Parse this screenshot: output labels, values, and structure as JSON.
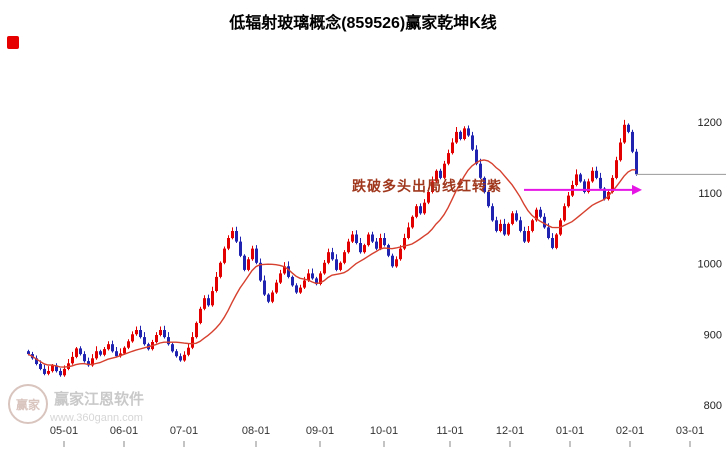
{
  "title": "低辐射玻璃概念(859526)赢家乾坤K线",
  "annotation": {
    "text": "跌破多头出局线红转紫",
    "color": "#a0381e"
  },
  "watermark": {
    "logo_text": "赢家",
    "brand": "赢家江恩软件",
    "url": "www.360gann.com",
    "color": "#c9c9c9"
  },
  "chart_data": {
    "type": "candlestick",
    "title": "低辐射玻璃概念(859526)赢家乾坤K线",
    "ylim": [
      800,
      1200
    ],
    "y_ticks": [
      800,
      900,
      1000,
      1100,
      1200
    ],
    "x_ticks": [
      {
        "label": "05-01",
        "index": 9
      },
      {
        "label": "06-01",
        "index": 24
      },
      {
        "label": "07-01",
        "index": 39
      },
      {
        "label": "08-01",
        "index": 57
      },
      {
        "label": "09-01",
        "index": 73
      },
      {
        "label": "10-01",
        "index": 89
      },
      {
        "label": "11-01",
        "index": 105.5
      },
      {
        "label": "12-01",
        "index": 120.5
      },
      {
        "label": "01-01",
        "index": 135.5
      },
      {
        "label": "02-01",
        "index": 150.5
      },
      {
        "label": "03-01",
        "index": 165.5
      }
    ],
    "closes": [
      872,
      866,
      858,
      851,
      844,
      848,
      856,
      848,
      842,
      851,
      859,
      868,
      880,
      872,
      862,
      856,
      866,
      876,
      871,
      879,
      886,
      876,
      869,
      873,
      881,
      890,
      900,
      906,
      896,
      886,
      879,
      889,
      899,
      906,
      896,
      886,
      876,
      869,
      863,
      871,
      881,
      896,
      916,
      936,
      951,
      941,
      961,
      981,
      1001,
      1021,
      1036,
      1046,
      1031,
      1011,
      991,
      1006,
      1021,
      1001,
      976,
      956,
      946,
      959,
      973,
      986,
      996,
      981,
      969,
      959,
      966,
      976,
      986,
      979,
      971,
      986,
      1001,
      1016,
      1006,
      991,
      1001,
      1016,
      1031,
      1041,
      1029,
      1016,
      1026,
      1041,
      1031,
      1021,
      1036,
      1026,
      1011,
      996,
      1006,
      1021,
      1036,
      1051,
      1066,
      1081,
      1071,
      1086,
      1101,
      1116,
      1131,
      1121,
      1141,
      1156,
      1171,
      1186,
      1176,
      1191,
      1181,
      1161,
      1141,
      1121,
      1101,
      1081,
      1061,
      1046,
      1056,
      1041,
      1056,
      1071,
      1061,
      1046,
      1031,
      1046,
      1061,
      1076,
      1066,
      1051,
      1036,
      1022,
      1041,
      1061,
      1081,
      1096,
      1111,
      1126,
      1116,
      1101,
      1116,
      1131,
      1121,
      1106,
      1091,
      1101,
      1121,
      1146,
      1171,
      1196,
      1186,
      1158,
      1126
    ],
    "ma_window": 15,
    "up_color": "#e30000",
    "down_color": "#1f23b0",
    "ma_color": "#d6402e",
    "exit_line": {
      "label": "跌破多头出局线红转紫",
      "price": 1104,
      "from_index": 124,
      "to_index": 151,
      "color": "#e516e5"
    },
    "last_price_line": {
      "price": 1126,
      "color": "#9a9a9a"
    }
  }
}
